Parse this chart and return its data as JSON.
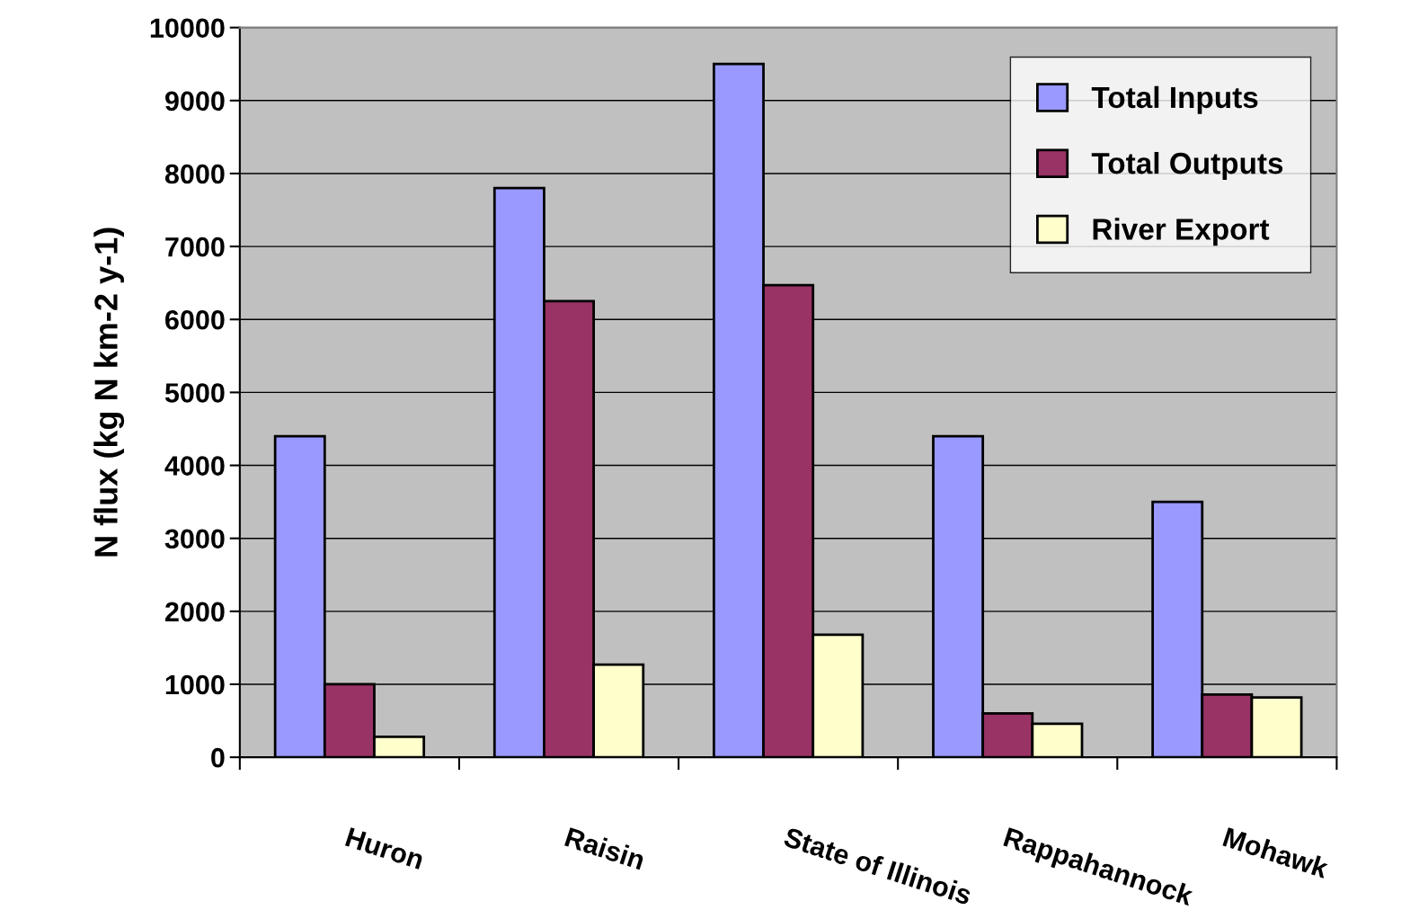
{
  "chart_data": {
    "type": "bar",
    "ylabel": "N flux (kg N km-2 y-1)",
    "categories": [
      "Huron",
      "Raisin",
      "State of Illinois",
      "Rappahannock",
      "Mohawk"
    ],
    "series": [
      {
        "name": "Total Inputs",
        "color": "#9999ff",
        "values": [
          4400,
          7800,
          9500,
          4400,
          3500
        ]
      },
      {
        "name": "Total Outputs",
        "color": "#993366",
        "values": [
          1000,
          6250,
          6470,
          600,
          860
        ]
      },
      {
        "name": "River Export",
        "color": "#ffffcc",
        "values": [
          280,
          1270,
          1680,
          460,
          820
        ]
      }
    ],
    "ylim": [
      0,
      10000
    ],
    "yticks": [
      0,
      1000,
      2000,
      3000,
      4000,
      5000,
      6000,
      7000,
      8000,
      9000,
      10000
    ],
    "grid": "y",
    "legend": "top right"
  }
}
